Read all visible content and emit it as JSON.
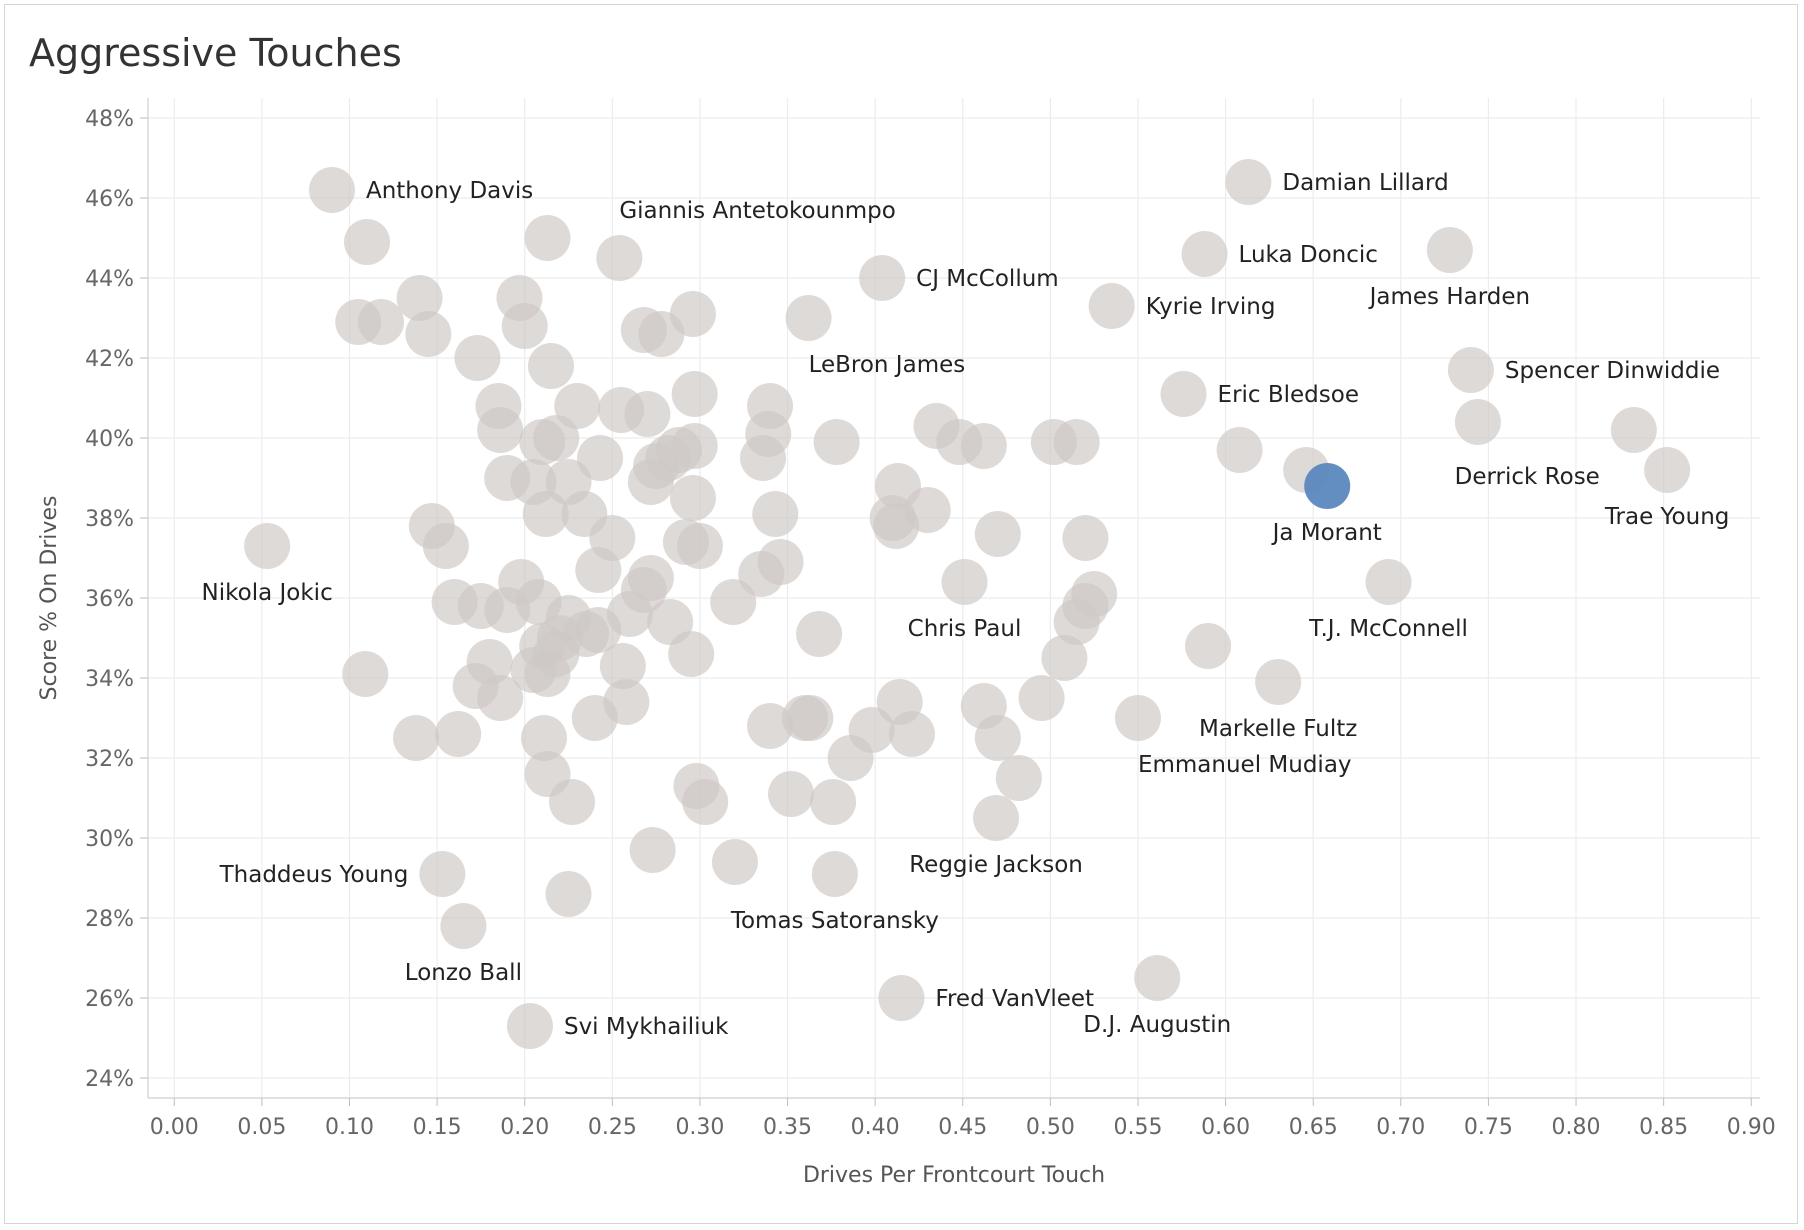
{
  "chart_data": {
    "type": "scatter",
    "title": "Aggressive Touches",
    "xlabel": "Drives Per Frontcourt Touch",
    "ylabel": "Score % On Drives",
    "xlim": [
      -0.015,
      0.905
    ],
    "ylim": [
      23.5,
      48.5
    ],
    "x_ticks": [
      0.0,
      0.05,
      0.1,
      0.15,
      0.2,
      0.25,
      0.3,
      0.35,
      0.4,
      0.45,
      0.5,
      0.55,
      0.6,
      0.65,
      0.7,
      0.75,
      0.8,
      0.85,
      0.9
    ],
    "x_tick_labels": [
      "0.00",
      "0.05",
      "0.10",
      "0.15",
      "0.20",
      "0.25",
      "0.30",
      "0.35",
      "0.40",
      "0.45",
      "0.50",
      "0.55",
      "0.60",
      "0.65",
      "0.70",
      "0.75",
      "0.80",
      "0.85",
      "0.90"
    ],
    "y_ticks": [
      24,
      26,
      28,
      30,
      32,
      34,
      36,
      38,
      40,
      42,
      44,
      46,
      48
    ],
    "y_tick_labels": [
      "24%",
      "26%",
      "28%",
      "30%",
      "32%",
      "34%",
      "36%",
      "38%",
      "40%",
      "42%",
      "44%",
      "46%",
      "48%"
    ],
    "colors": {
      "point": "#cfc9c6",
      "highlight": "#5b88bf",
      "grid": "#ececec"
    },
    "labeled_points": [
      {
        "name": "Anthony Davis",
        "x": 0.09,
        "y": 46.2,
        "label_pos": "right"
      },
      {
        "name": "Giannis Antetokounmpo",
        "x": 0.254,
        "y": 44.5,
        "label_pos": "above-right"
      },
      {
        "name": "CJ McCollum",
        "x": 0.404,
        "y": 44.0,
        "label_pos": "right"
      },
      {
        "name": "Damian Lillard",
        "x": 0.613,
        "y": 46.4,
        "label_pos": "right"
      },
      {
        "name": "Luka Doncic",
        "x": 0.588,
        "y": 44.6,
        "label_pos": "right"
      },
      {
        "name": "Kyrie Irving",
        "x": 0.535,
        "y": 43.3,
        "label_pos": "right"
      },
      {
        "name": "James Harden",
        "x": 0.728,
        "y": 44.7,
        "label_pos": "below"
      },
      {
        "name": "LeBron James",
        "x": 0.362,
        "y": 43.0,
        "label_pos": "below-right"
      },
      {
        "name": "Eric Bledsoe",
        "x": 0.576,
        "y": 41.1,
        "label_pos": "right"
      },
      {
        "name": "Spencer Dinwiddie",
        "x": 0.74,
        "y": 41.7,
        "label_pos": "right"
      },
      {
        "name": "Derrick Rose",
        "x": 0.833,
        "y": 40.2,
        "label_pos": "below-left"
      },
      {
        "name": "Trae Young",
        "x": 0.852,
        "y": 39.2,
        "label_pos": "below"
      },
      {
        "name": "Ja Morant",
        "x": 0.658,
        "y": 38.8,
        "label_pos": "below",
        "highlight": true
      },
      {
        "name": "Nikola Jokic",
        "x": 0.053,
        "y": 37.3,
        "label_pos": "below"
      },
      {
        "name": "Chris Paul",
        "x": 0.451,
        "y": 36.4,
        "label_pos": "below"
      },
      {
        "name": "T.J. McConnell",
        "x": 0.693,
        "y": 36.4,
        "label_pos": "below"
      },
      {
        "name": "Markelle Fultz",
        "x": 0.63,
        "y": 33.9,
        "label_pos": "below"
      },
      {
        "name": "Emmanuel Mudiay",
        "x": 0.55,
        "y": 33.0,
        "label_pos": "below-right"
      },
      {
        "name": "Reggie Jackson",
        "x": 0.469,
        "y": 30.5,
        "label_pos": "below"
      },
      {
        "name": "Thaddeus Young",
        "x": 0.153,
        "y": 29.1,
        "label_pos": "left"
      },
      {
        "name": "Tomas Satoransky",
        "x": 0.377,
        "y": 29.1,
        "label_pos": "below"
      },
      {
        "name": "Lonzo Ball",
        "x": 0.165,
        "y": 27.8,
        "label_pos": "below"
      },
      {
        "name": "Fred VanVleet",
        "x": 0.415,
        "y": 26.0,
        "label_pos": "right"
      },
      {
        "name": "D.J. Augustin",
        "x": 0.561,
        "y": 26.5,
        "label_pos": "below"
      },
      {
        "name": "Svi Mykhailiuk",
        "x": 0.203,
        "y": 25.3,
        "label_pos": "right"
      }
    ],
    "unlabeled_points": [
      [
        0.11,
        44.9
      ],
      [
        0.105,
        42.9
      ],
      [
        0.118,
        42.9
      ],
      [
        0.14,
        43.5
      ],
      [
        0.145,
        42.6
      ],
      [
        0.173,
        42.0
      ],
      [
        0.197,
        43.5
      ],
      [
        0.2,
        42.8
      ],
      [
        0.213,
        45.0
      ],
      [
        0.215,
        41.8
      ],
      [
        0.185,
        40.8
      ],
      [
        0.186,
        40.2
      ],
      [
        0.19,
        39.0
      ],
      [
        0.205,
        38.9
      ],
      [
        0.21,
        39.9
      ],
      [
        0.218,
        40.0
      ],
      [
        0.23,
        40.8
      ],
      [
        0.225,
        38.9
      ],
      [
        0.234,
        38.1
      ],
      [
        0.243,
        39.5
      ],
      [
        0.255,
        40.7
      ],
      [
        0.27,
        40.6
      ],
      [
        0.275,
        39.3
      ],
      [
        0.272,
        38.9
      ],
      [
        0.282,
        39.5
      ],
      [
        0.288,
        39.7
      ],
      [
        0.297,
        39.8
      ],
      [
        0.297,
        41.1
      ],
      [
        0.296,
        38.5
      ],
      [
        0.292,
        37.4
      ],
      [
        0.3,
        37.3
      ],
      [
        0.268,
        42.7
      ],
      [
        0.278,
        42.6
      ],
      [
        0.296,
        43.1
      ],
      [
        0.212,
        38.1
      ],
      [
        0.147,
        37.8
      ],
      [
        0.155,
        37.3
      ],
      [
        0.16,
        35.9
      ],
      [
        0.175,
        35.8
      ],
      [
        0.19,
        35.7
      ],
      [
        0.198,
        36.4
      ],
      [
        0.208,
        35.9
      ],
      [
        0.21,
        34.8
      ],
      [
        0.22,
        35.0
      ],
      [
        0.225,
        35.5
      ],
      [
        0.235,
        35.1
      ],
      [
        0.242,
        36.7
      ],
      [
        0.25,
        37.5
      ],
      [
        0.26,
        35.6
      ],
      [
        0.268,
        36.2
      ],
      [
        0.272,
        36.5
      ],
      [
        0.283,
        35.4
      ],
      [
        0.295,
        34.6
      ],
      [
        0.319,
        35.9
      ],
      [
        0.335,
        36.6
      ],
      [
        0.346,
        36.9
      ],
      [
        0.343,
        38.1
      ],
      [
        0.336,
        39.5
      ],
      [
        0.339,
        40.1
      ],
      [
        0.34,
        40.8
      ],
      [
        0.378,
        39.9
      ],
      [
        0.368,
        35.1
      ],
      [
        0.109,
        34.1
      ],
      [
        0.172,
        33.8
      ],
      [
        0.18,
        34.4
      ],
      [
        0.186,
        33.5
      ],
      [
        0.205,
        34.2
      ],
      [
        0.213,
        34.1
      ],
      [
        0.218,
        34.6
      ],
      [
        0.242,
        35.2
      ],
      [
        0.256,
        34.3
      ],
      [
        0.258,
        33.4
      ],
      [
        0.24,
        33.0
      ],
      [
        0.138,
        32.5
      ],
      [
        0.162,
        32.6
      ],
      [
        0.211,
        32.5
      ],
      [
        0.213,
        31.6
      ],
      [
        0.227,
        30.9
      ],
      [
        0.273,
        29.7
      ],
      [
        0.298,
        31.3
      ],
      [
        0.303,
        30.9
      ],
      [
        0.32,
        29.4
      ],
      [
        0.34,
        32.8
      ],
      [
        0.352,
        31.1
      ],
      [
        0.36,
        33.0
      ],
      [
        0.363,
        33.0
      ],
      [
        0.376,
        30.9
      ],
      [
        0.386,
        32.0
      ],
      [
        0.398,
        32.7
      ],
      [
        0.414,
        33.4
      ],
      [
        0.421,
        32.6
      ],
      [
        0.43,
        38.2
      ],
      [
        0.413,
        38.8
      ],
      [
        0.41,
        38.0
      ],
      [
        0.412,
        37.8
      ],
      [
        0.435,
        40.3
      ],
      [
        0.448,
        39.9
      ],
      [
        0.462,
        39.8
      ],
      [
        0.47,
        37.6
      ],
      [
        0.462,
        33.3
      ],
      [
        0.47,
        32.5
      ],
      [
        0.482,
        31.5
      ],
      [
        0.495,
        33.5
      ],
      [
        0.502,
        39.9
      ],
      [
        0.515,
        39.9
      ],
      [
        0.508,
        34.5
      ],
      [
        0.515,
        35.4
      ],
      [
        0.52,
        37.5
      ],
      [
        0.52,
        35.8
      ],
      [
        0.525,
        36.1
      ],
      [
        0.608,
        39.7
      ],
      [
        0.59,
        34.8
      ],
      [
        0.646,
        39.2
      ],
      [
        0.744,
        40.4
      ],
      [
        0.225,
        28.6
      ]
    ]
  }
}
